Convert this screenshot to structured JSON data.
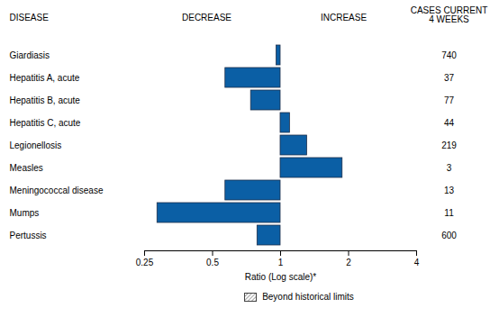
{
  "chart_data": {
    "type": "bar",
    "orientation": "horizontal",
    "log": "x",
    "headers": {
      "disease": "DISEASE",
      "decrease": "DECREASE",
      "increase": "INCREASE",
      "cases": "CASES CURRENT\n4 WEEKS"
    },
    "categories": [
      "Giardiasis",
      "Hepatitis A, acute",
      "Hepatitis B, acute",
      "Hepatitis C, acute",
      "Legionellosis",
      "Measles",
      "Meningococcal disease",
      "Mumps",
      "Pertussis"
    ],
    "values": [
      0.96,
      0.57,
      0.74,
      1.1,
      1.31,
      1.88,
      0.57,
      0.285,
      0.79
    ],
    "cases": [
      740,
      37,
      77,
      44,
      219,
      3,
      13,
      11,
      600
    ],
    "color": "#0b5fa5",
    "x_label": "Ratio (Log scale)*",
    "xlim": [
      0.25,
      4
    ],
    "xticks": [
      0.25,
      0.5,
      1,
      2,
      4
    ],
    "legend_label": "Beyond historical limits"
  }
}
